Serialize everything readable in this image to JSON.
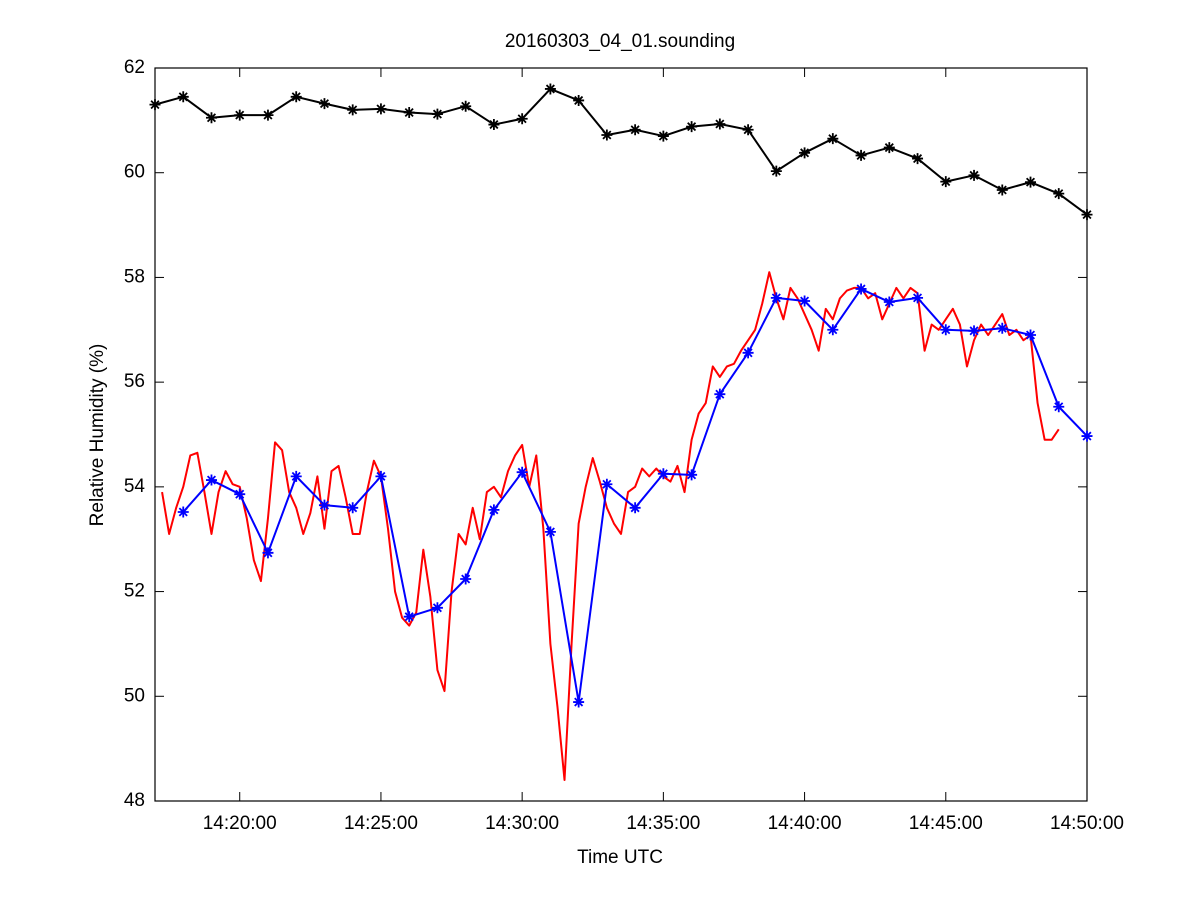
{
  "chart_data": {
    "type": "line",
    "title": "20160303_04_01.sounding",
    "xlabel": "Time UTC",
    "ylabel": "Relative Humidity (%)",
    "xlim": [
      "14:17:00",
      "14:50:00"
    ],
    "xticks": [
      "14:20:00",
      "14:25:00",
      "14:30:00",
      "14:35:00",
      "14:40:00",
      "14:45:00",
      "14:50:00"
    ],
    "ylim": [
      48,
      62
    ],
    "yticks": [
      48,
      50,
      52,
      54,
      56,
      58,
      60,
      62
    ],
    "grid": false,
    "series": [
      {
        "color": "#000000",
        "marker": "asterisk",
        "x": [
          "14:17:00",
          "14:18:00",
          "14:19:00",
          "14:20:00",
          "14:21:00",
          "14:22:00",
          "14:23:00",
          "14:24:00",
          "14:25:00",
          "14:26:00",
          "14:27:00",
          "14:28:00",
          "14:29:00",
          "14:30:00",
          "14:31:00",
          "14:32:00",
          "14:33:00",
          "14:34:00",
          "14:35:00",
          "14:36:00",
          "14:37:00",
          "14:38:00",
          "14:39:00",
          "14:40:00",
          "14:41:00",
          "14:42:00",
          "14:43:00",
          "14:44:00",
          "14:45:00",
          "14:46:00",
          "14:47:00",
          "14:48:00",
          "14:49:00",
          "14:50:00"
        ],
        "values": [
          61.3,
          61.45,
          61.05,
          61.1,
          61.1,
          61.45,
          61.32,
          61.2,
          61.22,
          61.15,
          61.12,
          61.27,
          60.92,
          61.03,
          61.6,
          61.38,
          60.72,
          60.82,
          60.7,
          60.88,
          60.93,
          60.82,
          60.03,
          60.38,
          60.65,
          60.33,
          60.48,
          60.27,
          59.83,
          59.95,
          59.67,
          59.82,
          59.6,
          59.2
        ]
      },
      {
        "color": "#ff0000",
        "marker": "none",
        "x": [
          "14:17:15",
          "14:17:30",
          "14:17:45",
          "14:18:00",
          "14:18:15",
          "14:18:30",
          "14:18:45",
          "14:19:00",
          "14:19:15",
          "14:19:30",
          "14:19:45",
          "14:20:00",
          "14:20:15",
          "14:20:30",
          "14:20:45",
          "14:21:00",
          "14:21:15",
          "14:21:30",
          "14:21:45",
          "14:22:00",
          "14:22:15",
          "14:22:30",
          "14:22:45",
          "14:23:00",
          "14:23:15",
          "14:23:30",
          "14:23:45",
          "14:24:00",
          "14:24:15",
          "14:24:30",
          "14:24:45",
          "14:25:00",
          "14:25:15",
          "14:25:30",
          "14:25:45",
          "14:26:00",
          "14:26:15",
          "14:26:30",
          "14:26:45",
          "14:27:00",
          "14:27:15",
          "14:27:30",
          "14:27:45",
          "14:28:00",
          "14:28:15",
          "14:28:30",
          "14:28:45",
          "14:29:00",
          "14:29:15",
          "14:29:30",
          "14:29:45",
          "14:30:00",
          "14:30:15",
          "14:30:30",
          "14:30:45",
          "14:31:00",
          "14:31:15",
          "14:31:30",
          "14:31:45",
          "14:32:00",
          "14:32:15",
          "14:32:30",
          "14:32:45",
          "14:33:00",
          "14:33:15",
          "14:33:30",
          "14:33:45",
          "14:34:00",
          "14:34:15",
          "14:34:30",
          "14:34:45",
          "14:35:00",
          "14:35:15",
          "14:35:30",
          "14:35:45",
          "14:36:00",
          "14:36:15",
          "14:36:30",
          "14:36:45",
          "14:37:00",
          "14:37:15",
          "14:37:30",
          "14:37:45",
          "14:38:00",
          "14:38:15",
          "14:38:30",
          "14:38:45",
          "14:39:00",
          "14:39:15",
          "14:39:30",
          "14:39:45",
          "14:40:00",
          "14:40:15",
          "14:40:30",
          "14:40:45",
          "14:41:00",
          "14:41:15",
          "14:41:30",
          "14:41:45",
          "14:42:00",
          "14:42:15",
          "14:42:30",
          "14:42:45",
          "14:43:00",
          "14:43:15",
          "14:43:30",
          "14:43:45",
          "14:44:00",
          "14:44:15",
          "14:44:30",
          "14:44:45",
          "14:45:00",
          "14:45:15",
          "14:45:30",
          "14:45:45",
          "14:46:00",
          "14:46:15",
          "14:46:30",
          "14:46:45",
          "14:47:00",
          "14:47:15",
          "14:47:30",
          "14:47:45",
          "14:48:00",
          "14:48:15",
          "14:48:30",
          "14:48:45",
          "14:49:00"
        ],
        "values": [
          53.9,
          53.1,
          53.6,
          54.0,
          54.6,
          54.65,
          53.9,
          53.1,
          53.9,
          54.3,
          54.05,
          54.0,
          53.4,
          52.6,
          52.2,
          53.4,
          54.85,
          54.7,
          53.9,
          53.6,
          53.1,
          53.5,
          54.2,
          53.2,
          54.3,
          54.4,
          53.8,
          53.1,
          53.1,
          53.9,
          54.5,
          54.2,
          53.2,
          52.0,
          51.5,
          51.35,
          51.6,
          52.8,
          51.9,
          50.5,
          50.1,
          52.0,
          53.1,
          52.9,
          53.6,
          53.0,
          53.9,
          54.0,
          53.8,
          54.3,
          54.6,
          54.8,
          54.0,
          54.6,
          53.2,
          51.0,
          49.8,
          48.4,
          51.0,
          53.3,
          54.0,
          54.55,
          54.1,
          53.6,
          53.3,
          53.1,
          53.9,
          54.0,
          54.35,
          54.2,
          54.35,
          54.2,
          54.1,
          54.4,
          53.9,
          54.9,
          55.4,
          55.6,
          56.3,
          56.1,
          56.3,
          56.35,
          56.6,
          56.8,
          57.0,
          57.5,
          58.1,
          57.6,
          57.2,
          57.8,
          57.6,
          57.3,
          57.0,
          56.6,
          57.4,
          57.2,
          57.6,
          57.75,
          57.8,
          57.8,
          57.6,
          57.7,
          57.2,
          57.5,
          57.8,
          57.6,
          57.8,
          57.7,
          56.6,
          57.1,
          57.0,
          57.2,
          57.4,
          57.1,
          56.3,
          56.8,
          57.1,
          56.9,
          57.1,
          57.3,
          56.9,
          57.0,
          56.8,
          56.9,
          55.6,
          54.9,
          54.9,
          55.1
        ]
      },
      {
        "color": "#0000ff",
        "marker": "asterisk",
        "x": [
          "14:18:00",
          "14:19:00",
          "14:20:00",
          "14:21:00",
          "14:22:00",
          "14:23:00",
          "14:24:00",
          "14:25:00",
          "14:26:00",
          "14:27:00",
          "14:28:00",
          "14:29:00",
          "14:30:00",
          "14:31:00",
          "14:32:00",
          "14:33:00",
          "14:34:00",
          "14:35:00",
          "14:36:00",
          "14:37:00",
          "14:38:00",
          "14:39:00",
          "14:40:00",
          "14:41:00",
          "14:42:00",
          "14:43:00",
          "14:44:00",
          "14:45:00",
          "14:46:00",
          "14:47:00",
          "14:48:00",
          "14:49:00",
          "14:50:00"
        ],
        "values": [
          53.52,
          54.13,
          53.86,
          52.74,
          54.2,
          53.65,
          53.6,
          54.2,
          51.52,
          51.69,
          52.24,
          53.56,
          54.28,
          53.14,
          49.89,
          54.05,
          53.6,
          54.25,
          54.23,
          55.77,
          56.56,
          57.61,
          57.55,
          57.0,
          57.78,
          57.53,
          57.61,
          57.0,
          56.98,
          57.03,
          56.9,
          55.53,
          54.97
        ]
      }
    ]
  }
}
